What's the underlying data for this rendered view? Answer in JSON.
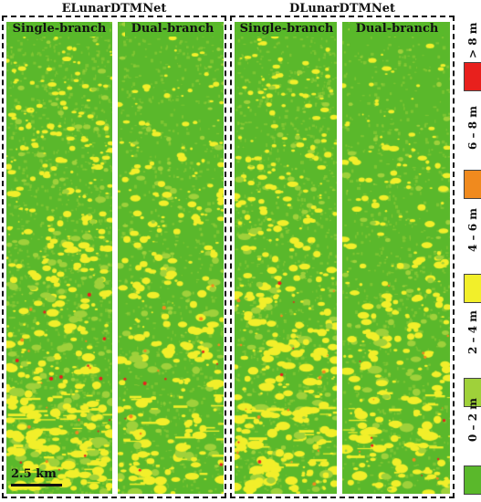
{
  "groups": [
    {
      "title": "ELunarDTMNet"
    },
    {
      "title": "DLunarDTMNet"
    }
  ],
  "panels": [
    {
      "label": "Single-branch",
      "seed": 11,
      "density": 1.3
    },
    {
      "label": "Dual-branch",
      "seed": 23,
      "density": 0.85
    },
    {
      "label": "Single-branch",
      "seed": 37,
      "density": 1.1
    },
    {
      "label": "Dual-branch",
      "seed": 51,
      "density": 0.8
    }
  ],
  "scale_bar": {
    "label": "2.5 km"
  },
  "legend": {
    "items": [
      {
        "label": "> 8 m",
        "color": "#e8201d"
      },
      {
        "label": "6 – 8 m",
        "color": "#f08a1e"
      },
      {
        "label": "4 – 6 m",
        "color": "#f2ef2a"
      },
      {
        "label": "2 – 4 m",
        "color": "#9fd13a"
      },
      {
        "label": "0 – 2 m",
        "color": "#5ab82b"
      }
    ]
  }
}
